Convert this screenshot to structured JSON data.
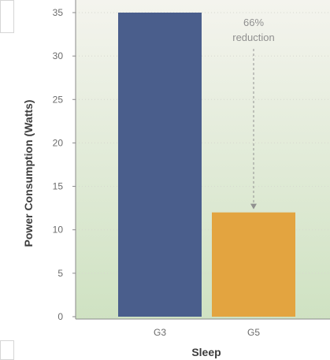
{
  "chart_data": {
    "type": "bar",
    "categories": [
      "G3",
      "G5"
    ],
    "values": [
      35,
      12
    ],
    "xlabel": "Sleep",
    "ylabel": "Power Consumption (Watts)",
    "yticks": [
      0,
      5,
      10,
      15,
      20,
      25,
      30,
      35
    ],
    "ylim": [
      0,
      35
    ],
    "grid": true,
    "annotation": {
      "line1": "66%",
      "line2": "reduction"
    },
    "colors": {
      "bars": [
        "#4a5e8c",
        "#e3a440"
      ],
      "bg_top": "#f4f4ee",
      "bg_bottom": "#cfe2c2",
      "text": "#6b6b6b",
      "axis_label": "#3d3d3d",
      "annotation": "#909090"
    }
  }
}
